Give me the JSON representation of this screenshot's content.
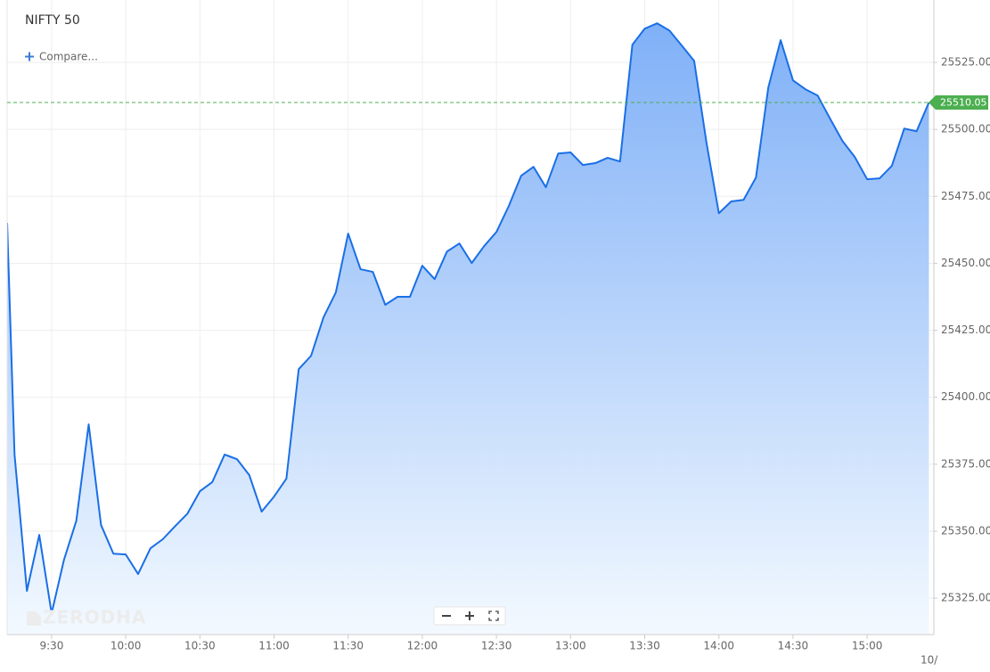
{
  "chart_data": {
    "type": "area",
    "title": "NIFTY 50",
    "compare": "Compare...",
    "watermark": "ZERODHA",
    "date_hint": "10/",
    "color": "#1a6fe6",
    "x": [
      552,
      555,
      560,
      565,
      570,
      575,
      580,
      585,
      590,
      595,
      600,
      605,
      610,
      615,
      620,
      625,
      630,
      635,
      640,
      645,
      650,
      655,
      660,
      665,
      670,
      675,
      680,
      685,
      690,
      695,
      700,
      705,
      710,
      715,
      720,
      725,
      730,
      735,
      740,
      745,
      750,
      755,
      760,
      765,
      770,
      775,
      780,
      785,
      790,
      795,
      800,
      805,
      810,
      815,
      820,
      825,
      830,
      835,
      840,
      845,
      850,
      855,
      860,
      865,
      870,
      875,
      880,
      885,
      890,
      895,
      900,
      905,
      910,
      915,
      920,
      925
    ],
    "values": [
      25465.1,
      25378.6,
      25327.7,
      25348.6,
      25319.3,
      25339.3,
      25353.9,
      25389.9,
      25352.3,
      25341.6,
      25341.3,
      25334.0,
      25343.6,
      25347.0,
      25351.9,
      25356.6,
      25364.9,
      25368.3,
      25378.6,
      25376.9,
      25370.9,
      25357.3,
      25362.9,
      25369.6,
      25410.5,
      25415.5,
      25429.8,
      25439.1,
      25461.1,
      25447.8,
      25446.8,
      25434.5,
      25437.5,
      25437.5,
      25449.1,
      25444.1,
      25454.4,
      25457.4,
      25450.1,
      25456.4,
      25461.7,
      25471.4,
      25482.7,
      25486.0,
      25478.4,
      25491.0,
      25491.4,
      25486.7,
      25487.4,
      25489.4,
      25488.0,
      25531.6,
      25537.6,
      25539.6,
      25536.9,
      25531.3,
      25525.6,
      25495.0,
      25468.7,
      25473.1,
      25473.7,
      25482.0,
      25515.6,
      25533.3,
      25518.3,
      25515.0,
      25512.6,
      25504.0,
      25495.7,
      25489.7,
      25481.4,
      25481.7,
      25486.4,
      25500.3,
      25499.3,
      25510.05
    ],
    "xlim": [
      552,
      927
    ],
    "xticks": [
      {
        "value": 570,
        "label": "9:30"
      },
      {
        "value": 600,
        "label": "10:00"
      },
      {
        "value": 630,
        "label": "10:30"
      },
      {
        "value": 660,
        "label": "11:00"
      },
      {
        "value": 690,
        "label": "11:30"
      },
      {
        "value": 720,
        "label": "12:00"
      },
      {
        "value": 750,
        "label": "12:30"
      },
      {
        "value": 780,
        "label": "13:00"
      },
      {
        "value": 810,
        "label": "13:30"
      },
      {
        "value": 840,
        "label": "14:00"
      },
      {
        "value": 870,
        "label": "14:30"
      },
      {
        "value": 900,
        "label": "15:00"
      }
    ],
    "ylim": [
      25311.4,
      25548.3
    ],
    "yticks": [
      {
        "value": 25325,
        "label": "25325.00"
      },
      {
        "value": 25350,
        "label": "25350.00"
      },
      {
        "value": 25375,
        "label": "25375.00"
      },
      {
        "value": 25400,
        "label": "25400.00"
      },
      {
        "value": 25425,
        "label": "25425.00"
      },
      {
        "value": 25450,
        "label": "25450.00"
      },
      {
        "value": 25475,
        "label": "25475.00"
      },
      {
        "value": 25500,
        "label": "25500.00"
      },
      {
        "value": 25525,
        "label": "25525.00"
      }
    ],
    "grid": true
  }
}
